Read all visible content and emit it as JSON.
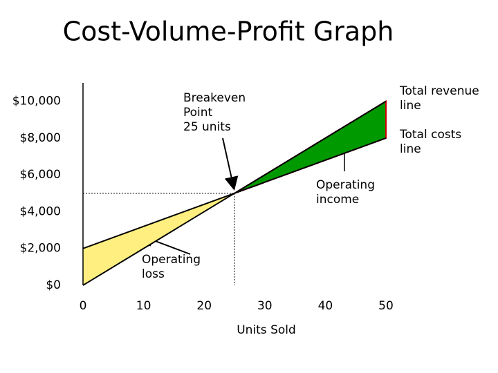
{
  "chart_data": {
    "type": "cvp",
    "title": "Cost-Volume-Profit Graph",
    "x_label": "Units Sold",
    "x": [
      0,
      25,
      50
    ],
    "series": [
      {
        "name": "Total revenue line",
        "color": "#000000",
        "values": [
          0,
          5000,
          10000
        ]
      },
      {
        "name": "Total costs line",
        "color": "#000000",
        "values": [
          2000,
          5000,
          8000
        ]
      }
    ],
    "loss_color": "#ffef80",
    "income_color": "#009900",
    "income_edge": "#cc0000",
    "xlim": [
      0,
      50
    ],
    "xticks": [
      0,
      10,
      20,
      30,
      40,
      50
    ],
    "ylim": [
      0,
      11000
    ],
    "yticks": [
      {
        "value": 0,
        "label": "$0"
      },
      {
        "value": 2000,
        "label": "$2,000"
      },
      {
        "value": 4000,
        "label": "$4,000"
      },
      {
        "value": 6000,
        "label": "$6,000"
      },
      {
        "value": 8000,
        "label": "$8,000"
      },
      {
        "value": 10000,
        "label": "$10,000"
      }
    ],
    "grid": false,
    "annotations": [
      {
        "text": [
          "Breakeven",
          "Point",
          "25 units"
        ]
      },
      {
        "text": [
          "Total revenue",
          "line"
        ]
      },
      {
        "text": [
          "Total costs",
          "line"
        ]
      },
      {
        "text": [
          "Operating",
          "income"
        ]
      },
      {
        "text": [
          "Operating",
          "loss"
        ]
      }
    ]
  }
}
